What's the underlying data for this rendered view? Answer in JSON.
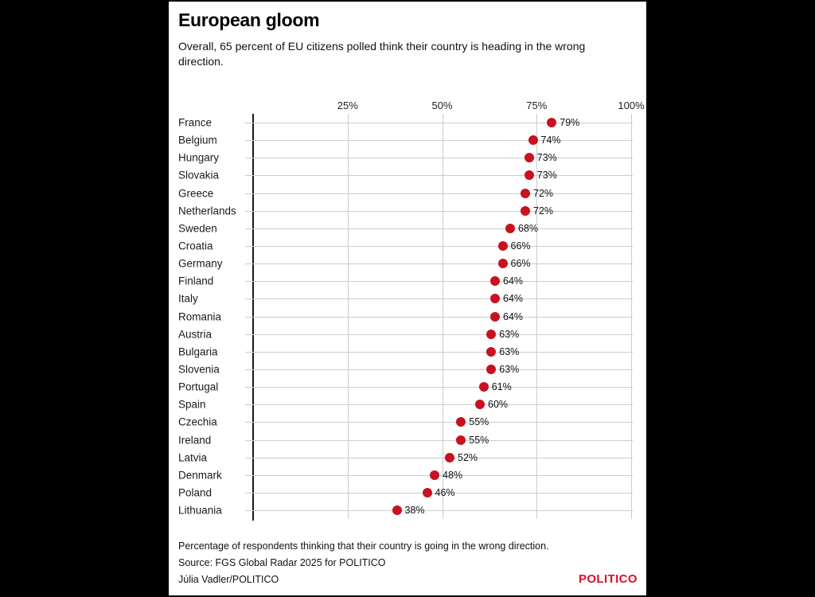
{
  "page": {
    "background": "#000000",
    "panel_background": "#ffffff"
  },
  "header": {
    "title": "European gloom",
    "subtitle": "Overall, 65 percent of EU citizens polled think their country is heading in the wrong direction."
  },
  "chart_data": {
    "type": "scatter",
    "subtype": "horizontal-dot-plot",
    "title": "European gloom",
    "categories": [
      "France",
      "Belgium",
      "Hungary",
      "Slovakia",
      "Greece",
      "Netherlands",
      "Sweden",
      "Croatia",
      "Germany",
      "Finland",
      "Italy",
      "Romania",
      "Austria",
      "Bulgaria",
      "Slovenia",
      "Portugal",
      "Spain",
      "Czechia",
      "Ireland",
      "Latvia",
      "Denmark",
      "Poland",
      "Lithuania"
    ],
    "values": [
      79,
      74,
      73,
      73,
      72,
      72,
      68,
      66,
      66,
      64,
      64,
      64,
      63,
      63,
      63,
      61,
      60,
      55,
      55,
      52,
      48,
      46,
      38
    ],
    "value_suffix": "%",
    "x_axis": {
      "position": "top",
      "range": [
        0,
        100
      ],
      "tick_values": [
        25,
        50,
        75,
        100
      ],
      "tick_labels": [
        "25%",
        "50%",
        "75%",
        "100%"
      ]
    },
    "grid": true,
    "legend": "none",
    "dot_color": "#c9121f",
    "grid_color": "#cccccc",
    "axis_color": "#1a1a1a"
  },
  "footer": {
    "note": "Percentage of respondents thinking that their country is going in the wrong direction.",
    "source": "Source: FGS Global Radar 2025 for POLITICO",
    "byline": "Júlia Vadler/POLITICO",
    "logo": "POLITICO",
    "logo_color": "#dc0d25"
  }
}
